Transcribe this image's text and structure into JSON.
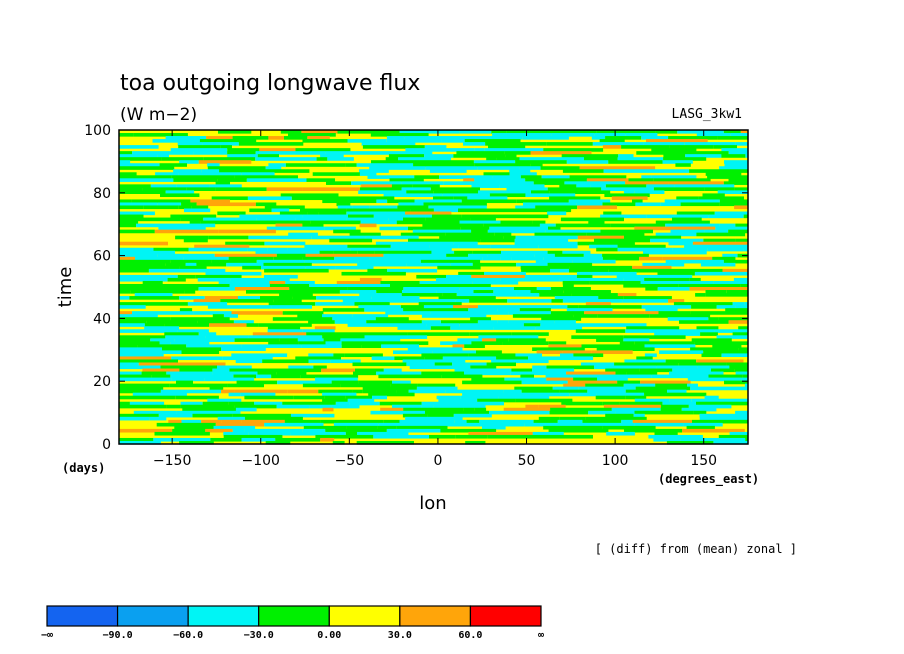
{
  "chart_data": {
    "type": "heatmap",
    "title": "toa outgoing longwave flux",
    "units": "(W m−2)",
    "run_label": "LASG_3kw1",
    "xlabel": "lon",
    "ylabel": "time",
    "x_units": "(degrees_east)",
    "y_units": "(days)",
    "xlim": [
      -180,
      175
    ],
    "ylim": [
      0,
      100
    ],
    "x_ticks": [
      -150,
      -100,
      -50,
      0,
      50,
      100,
      150
    ],
    "x_tick_labels": [
      "−150",
      "−100",
      "−50",
      "0",
      "50",
      "100",
      "150"
    ],
    "y_ticks": [
      0,
      20,
      40,
      60,
      80,
      100
    ],
    "y_tick_labels": [
      "0",
      "20",
      "40",
      "60",
      "80",
      "100"
    ],
    "annotation": "[ (diff) from (mean) zonal ]",
    "colorbar": {
      "boundaries": [
        "−∞",
        "−90.0",
        "−60.0",
        "−30.0",
        "0.00",
        "30.0",
        "60.0",
        "∞"
      ],
      "colors": [
        "#1464f0",
        "#0aa0f0",
        "#00f5f5",
        "#00f000",
        "#ffff00",
        "#ffa50a",
        "#ff0000"
      ]
    },
    "dominant_levels": [
      "−60.0 to −30.0",
      "−30.0 to 0.00",
      "0.00 to 30.0",
      "30.0 to 60.0"
    ]
  }
}
